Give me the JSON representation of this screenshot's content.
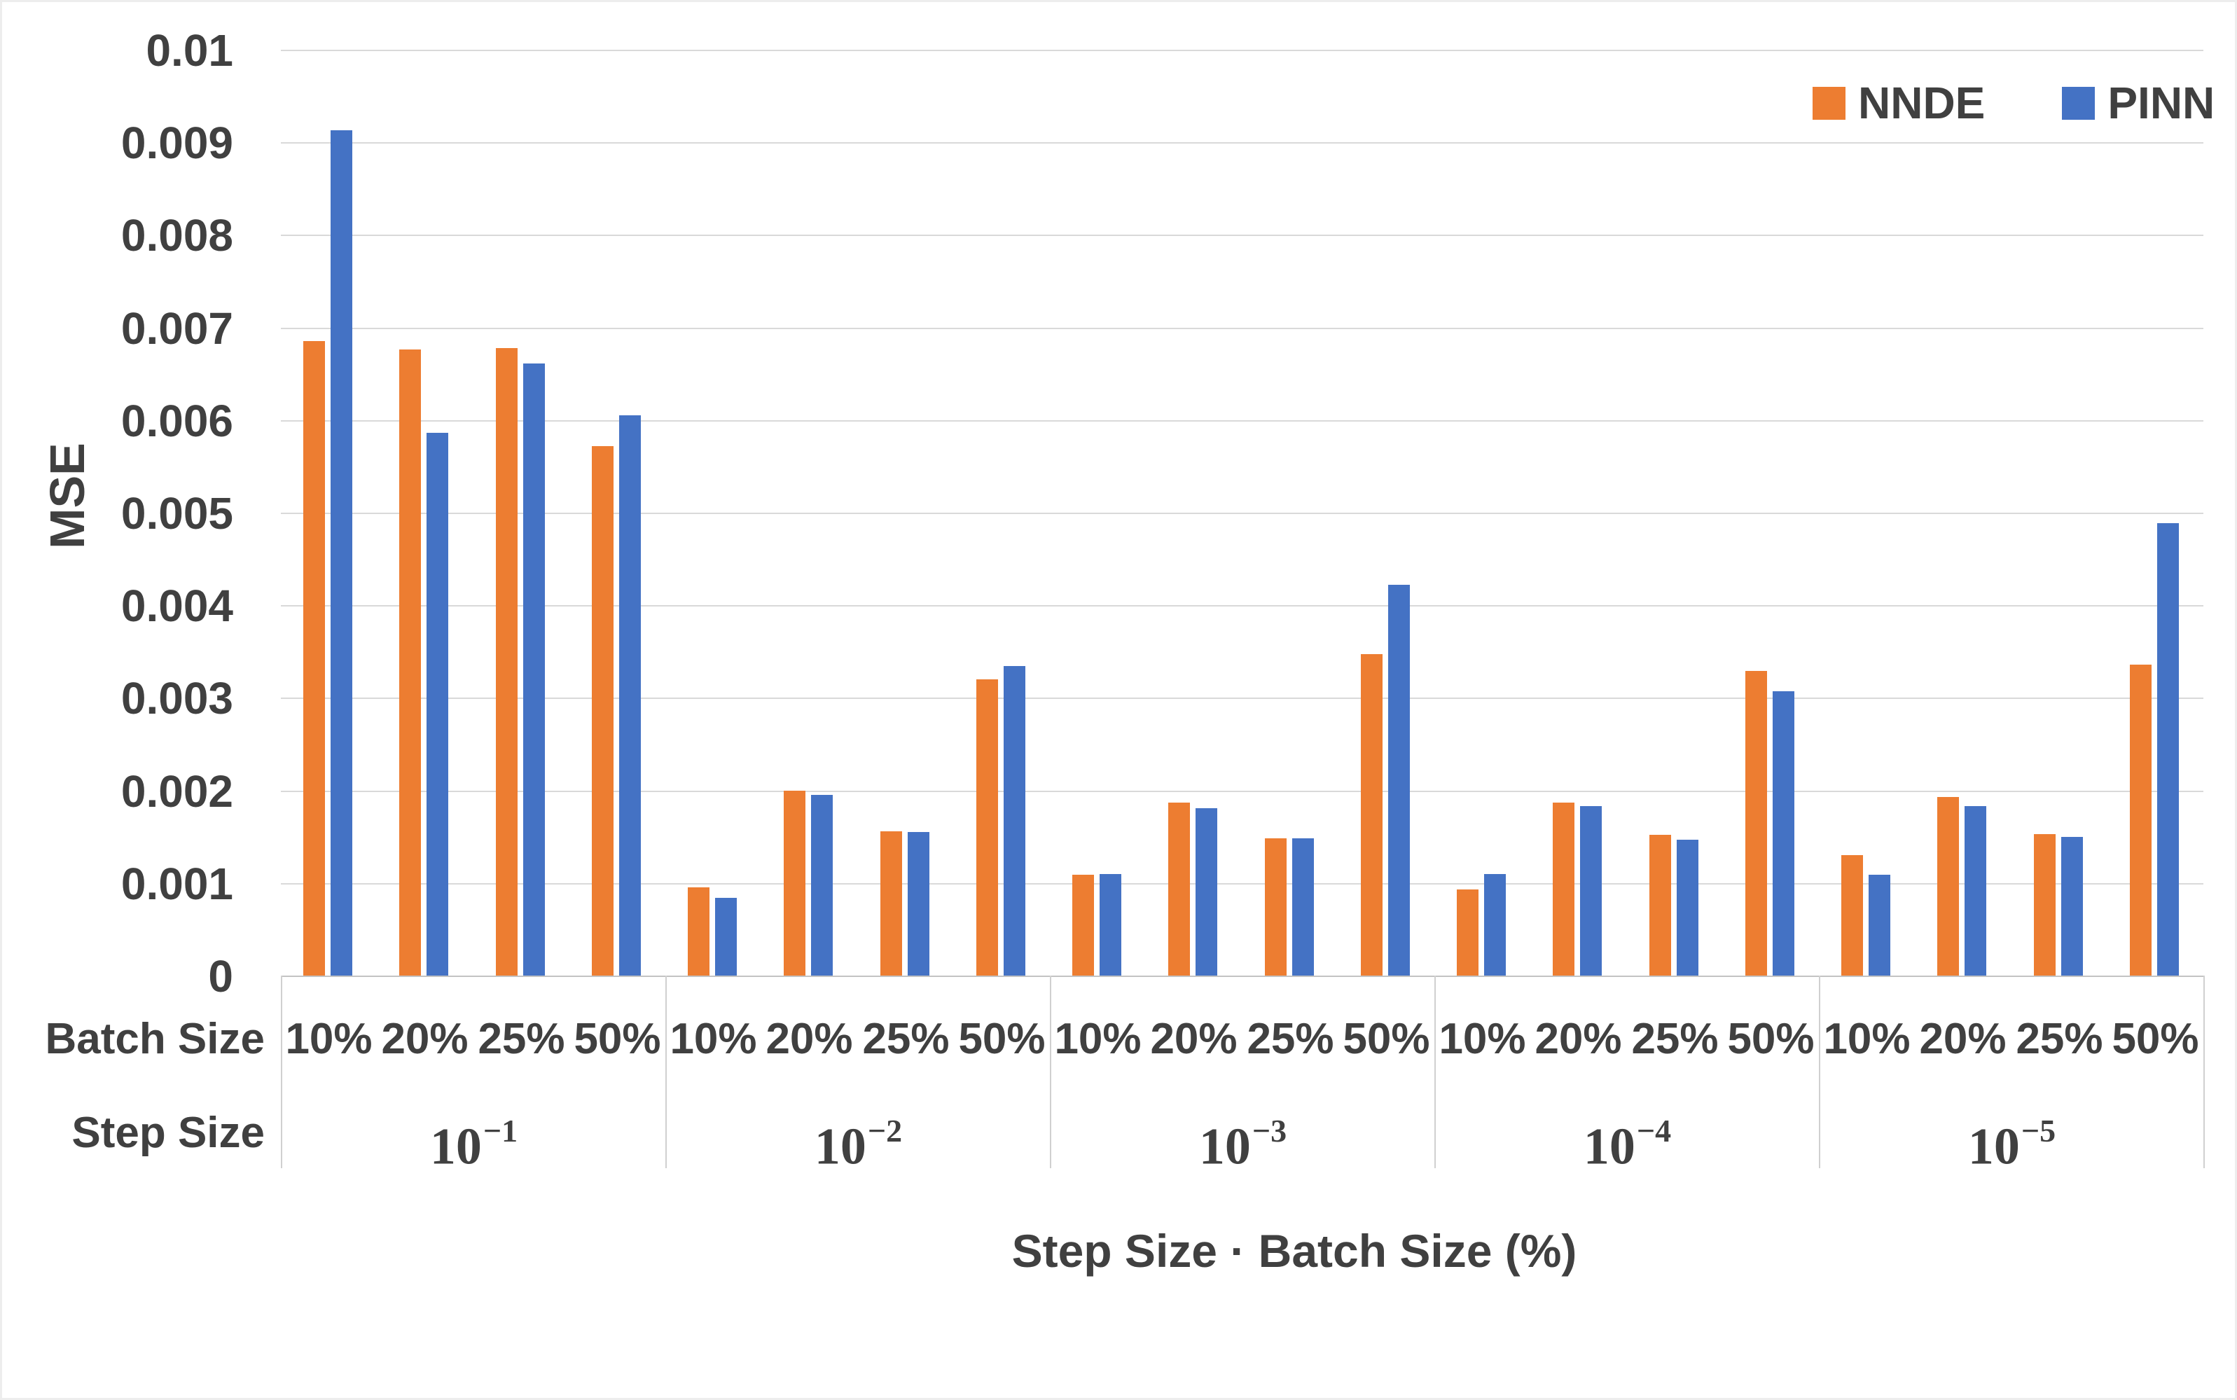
{
  "chart_data": {
    "type": "bar",
    "title": "",
    "xlabel": "Step Size · Batch Size (%)",
    "ylabel": "MSE",
    "ylim": [
      0,
      0.01
    ],
    "ytick_step": 0.001,
    "ytick_labels": [
      "0.01",
      "0.009",
      "0.008",
      "0.007",
      "0.006",
      "0.005",
      "0.004",
      "0.003",
      "0.002",
      "0.001",
      "0"
    ],
    "grid": "horizontal",
    "legend_position": "top-right",
    "row_headers": {
      "batch": "Batch Size",
      "step": "Step Size"
    },
    "batch_labels": [
      "10%",
      "20%",
      "25%",
      "50%"
    ],
    "step_sizes": [
      {
        "base": "10",
        "exp": "−1"
      },
      {
        "base": "10",
        "exp": "−2"
      },
      {
        "base": "10",
        "exp": "−3"
      },
      {
        "base": "10",
        "exp": "−4"
      },
      {
        "base": "10",
        "exp": "−5"
      }
    ],
    "series": [
      {
        "name": "NNDE",
        "color": "#ED7D31",
        "values": [
          0.00685,
          0.00676,
          0.00678,
          0.00572,
          0.00095,
          0.002,
          0.00156,
          0.0032,
          0.00109,
          0.00187,
          0.00148,
          0.00347,
          0.00093,
          0.00187,
          0.00152,
          0.00329,
          0.0013,
          0.00193,
          0.00153,
          0.00336
        ]
      },
      {
        "name": "PINN",
        "color": "#4472C4",
        "values": [
          0.00913,
          0.00586,
          0.00661,
          0.00605,
          0.00084,
          0.00195,
          0.00155,
          0.00334,
          0.0011,
          0.00181,
          0.00148,
          0.00422,
          0.0011,
          0.00183,
          0.00147,
          0.00307,
          0.00109,
          0.00183,
          0.0015,
          0.00489
        ]
      }
    ]
  }
}
